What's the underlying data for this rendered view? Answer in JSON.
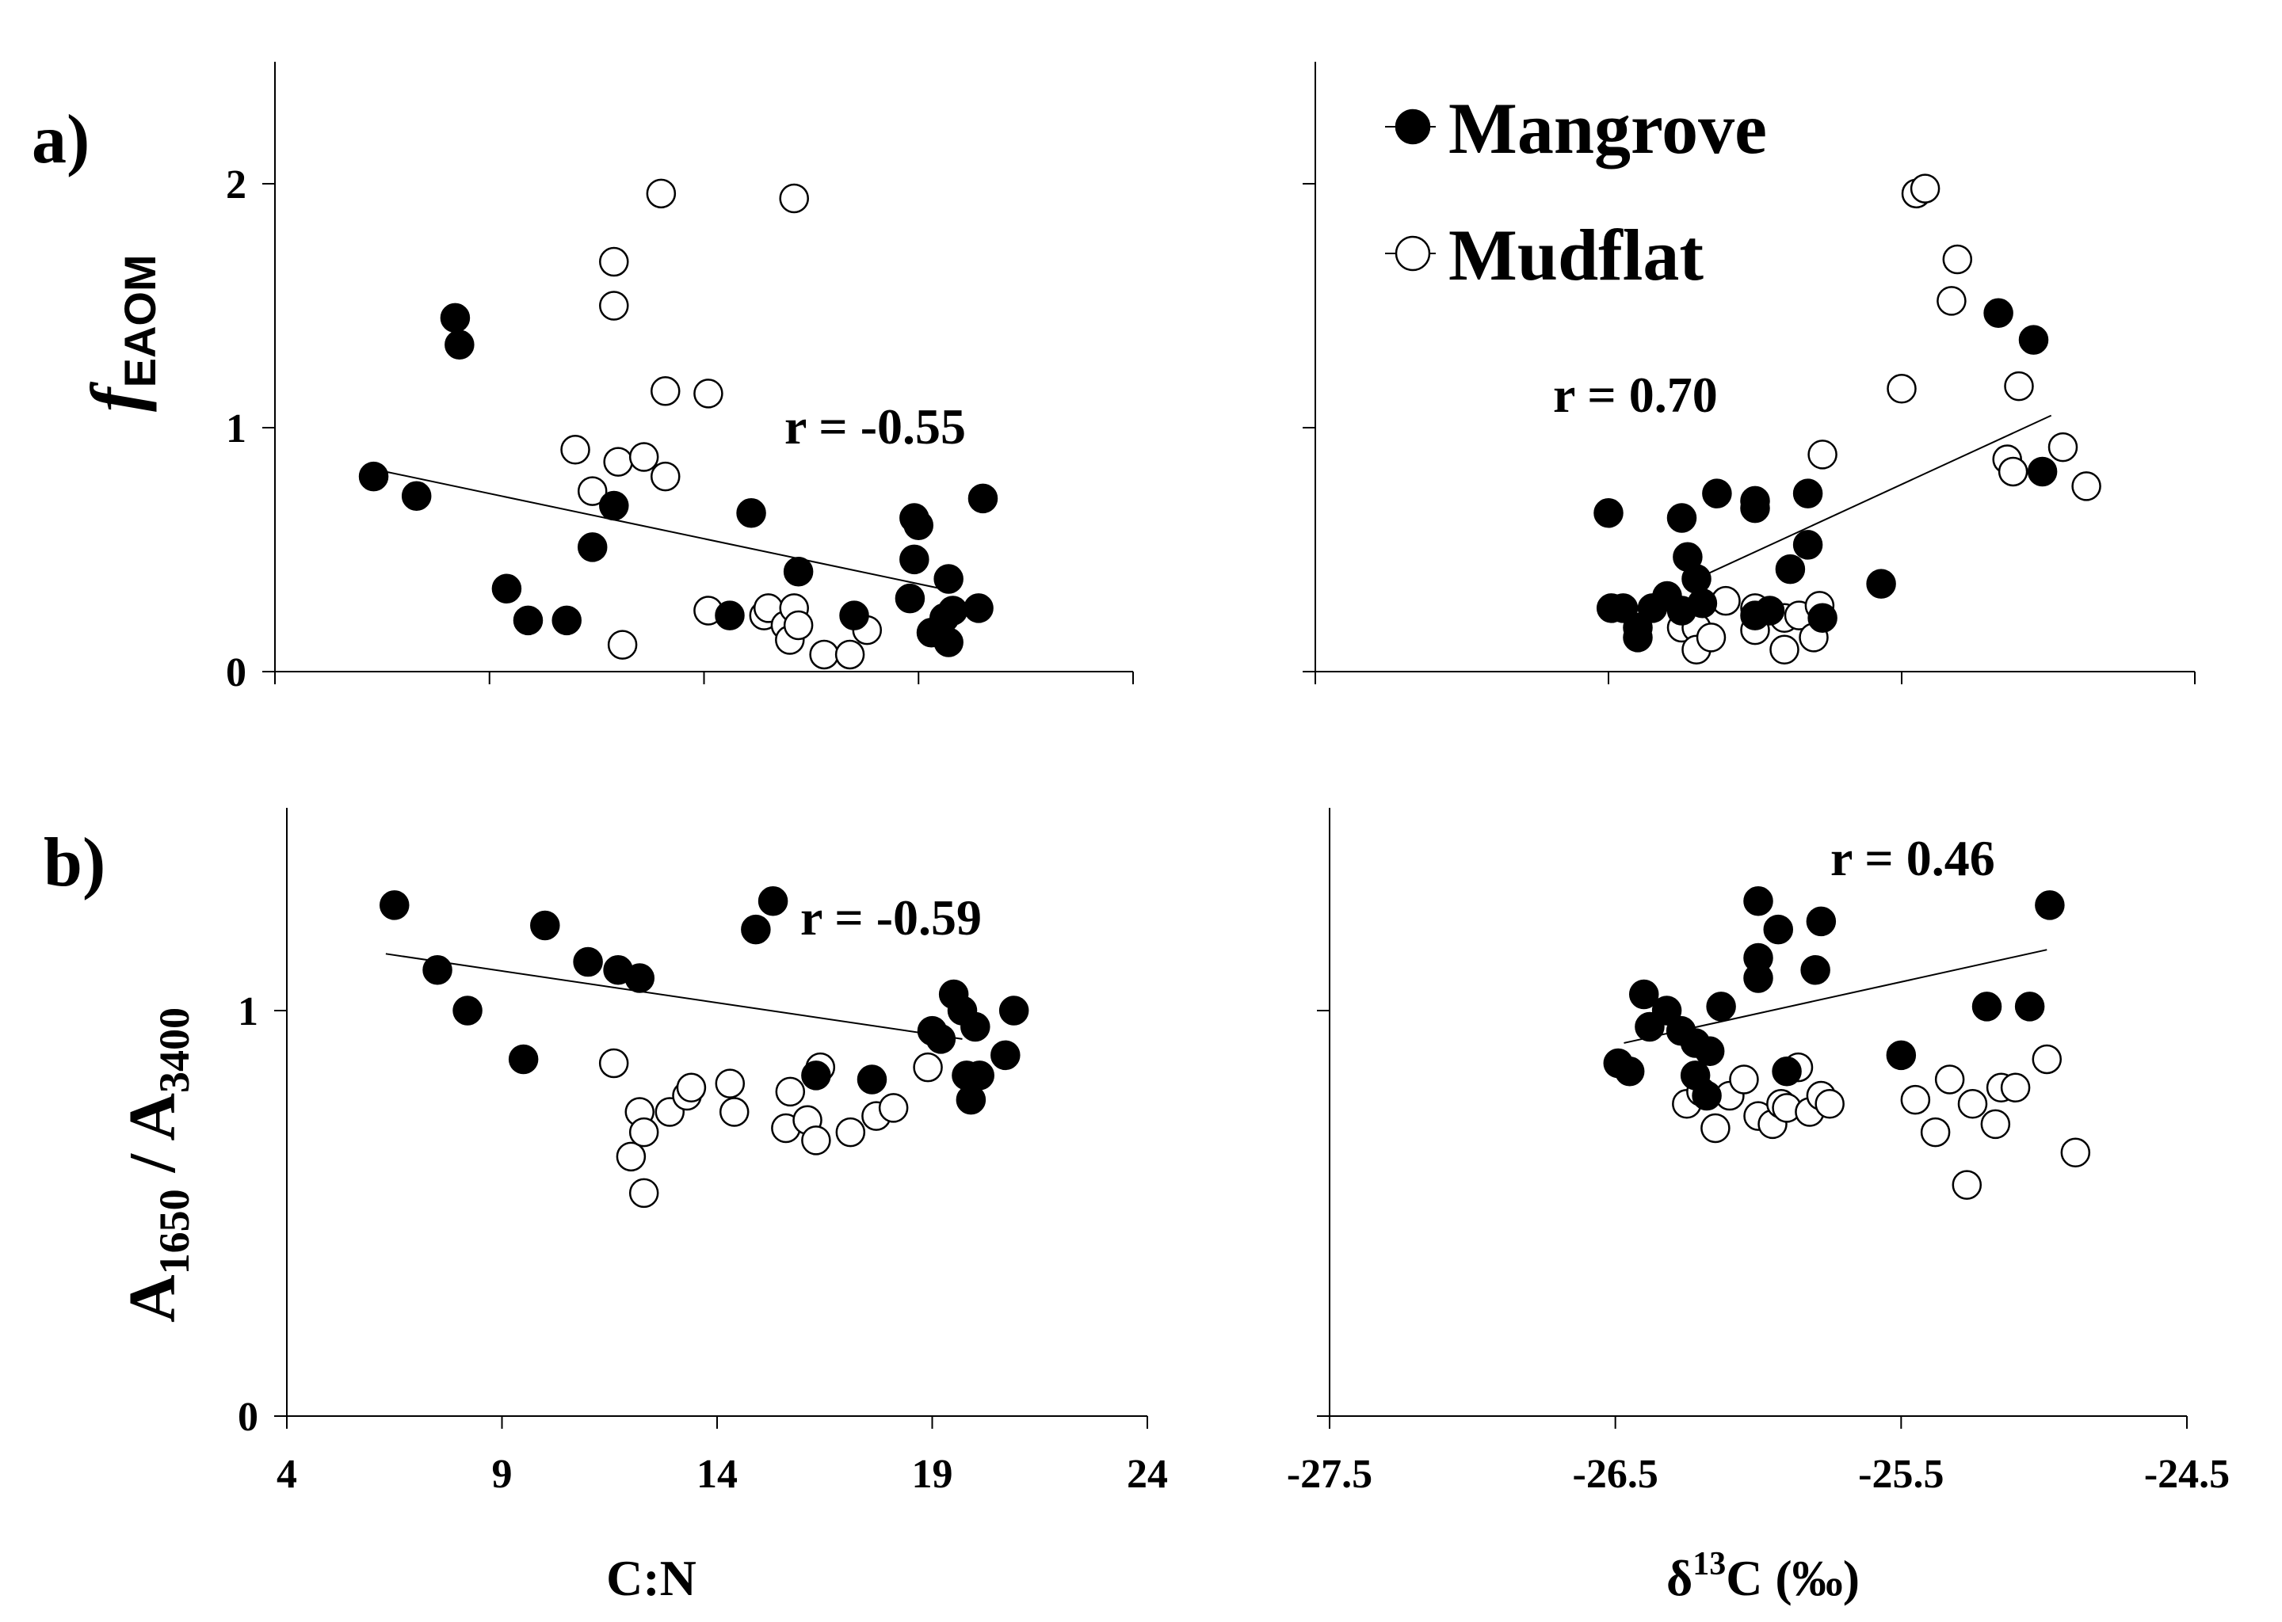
{
  "figure": {
    "panel_a_label": "a)",
    "panel_b_label": "b)",
    "ylabel_top": {
      "main": "f",
      "sub": "EAOM"
    },
    "ylabel_bottom": {
      "a1": "A",
      "s1": "1650",
      "mid": " / A",
      "s2": "3400"
    },
    "xlabel_left": "C:N",
    "xlabel_right": {
      "pre": "δ",
      "sup": "13",
      "post": "C (‰)"
    },
    "legend": {
      "mangrove": "Mangrove",
      "mudflat": "Mudflat"
    }
  },
  "chart_data": [
    {
      "id": "a_left",
      "type": "scatter",
      "xlim": [
        4,
        24
      ],
      "ylim": [
        0,
        2.5
      ],
      "yticks": [
        0,
        1,
        2
      ],
      "xticks": [
        4,
        9,
        14,
        19,
        24
      ],
      "show_xtick_labels": false,
      "show_ytick_labels": true,
      "r_label": "r = -0.55",
      "fit": [
        [
          6.3,
          0.83
        ],
        [
          19.8,
          0.33
        ]
      ],
      "series": [
        {
          "name": "Mangrove",
          "points": [
            [
              6.3,
              0.8
            ],
            [
              7.3,
              0.72
            ],
            [
              8.2,
              1.45
            ],
            [
              8.3,
              1.34
            ],
            [
              9.4,
              0.34
            ],
            [
              9.9,
              0.21
            ],
            [
              10.8,
              0.21
            ],
            [
              11.4,
              0.51
            ],
            [
              11.9,
              0.68
            ],
            [
              15.1,
              0.65
            ],
            [
              14.6,
              0.23
            ],
            [
              16.2,
              0.41
            ],
            [
              17.5,
              0.23
            ],
            [
              18.8,
              0.3
            ],
            [
              18.9,
              0.63
            ],
            [
              18.9,
              0.46
            ],
            [
              19.0,
              0.6
            ],
            [
              19.3,
              0.16
            ],
            [
              19.6,
              0.22
            ],
            [
              19.7,
              0.38
            ],
            [
              19.7,
              0.12
            ],
            [
              19.8,
              0.25
            ],
            [
              20.4,
              0.26
            ],
            [
              20.5,
              0.71
            ]
          ]
        },
        {
          "name": "Mudflat",
          "points": [
            [
              11.0,
              0.91
            ],
            [
              11.4,
              0.74
            ],
            [
              11.9,
              1.68
            ],
            [
              11.9,
              1.5
            ],
            [
              12.0,
              0.86
            ],
            [
              12.1,
              0.11
            ],
            [
              12.6,
              0.88
            ],
            [
              13.0,
              1.96
            ],
            [
              13.1,
              0.8
            ],
            [
              13.1,
              1.15
            ],
            [
              14.1,
              1.14
            ],
            [
              14.1,
              0.25
            ],
            [
              15.4,
              0.23
            ],
            [
              15.5,
              0.26
            ],
            [
              15.9,
              0.19
            ],
            [
              16.0,
              0.13
            ],
            [
              16.1,
              1.94
            ],
            [
              16.1,
              0.26
            ],
            [
              16.2,
              0.19
            ],
            [
              16.8,
              0.07
            ],
            [
              17.4,
              0.07
            ],
            [
              17.8,
              0.17
            ]
          ]
        }
      ]
    },
    {
      "id": "a_right",
      "type": "scatter",
      "xlim": [
        -27.5,
        -24.5
      ],
      "ylim": [
        0,
        2.5
      ],
      "yticks": [
        0,
        1,
        2
      ],
      "xticks": [
        -27.5,
        -26.5,
        -25.5,
        -24.5
      ],
      "show_xtick_labels": false,
      "show_ytick_labels": false,
      "r_label": "r = 0.70",
      "fit": [
        [
          -26.2,
          0.38
        ],
        [
          -24.99,
          1.05
        ]
      ],
      "series": [
        {
          "name": "Mangrove",
          "points": [
            [
              -26.5,
              0.65
            ],
            [
              -26.49,
              0.26
            ],
            [
              -26.45,
              0.26
            ],
            [
              -26.4,
              0.14
            ],
            [
              -26.4,
              0.18
            ],
            [
              -26.35,
              0.26
            ],
            [
              -26.3,
              0.31
            ],
            [
              -26.25,
              0.63
            ],
            [
              -26.25,
              0.25
            ],
            [
              -26.23,
              0.47
            ],
            [
              -26.2,
              0.38
            ],
            [
              -26.18,
              0.28
            ],
            [
              -26.13,
              0.73
            ],
            [
              -26.0,
              0.7
            ],
            [
              -26.0,
              0.67
            ],
            [
              -26.0,
              0.23
            ],
            [
              -25.95,
              0.25
            ],
            [
              -25.88,
              0.42
            ],
            [
              -25.82,
              0.73
            ],
            [
              -25.82,
              0.52
            ],
            [
              -25.77,
              0.22
            ],
            [
              -25.57,
              0.36
            ],
            [
              -25.17,
              1.47
            ],
            [
              -25.05,
              1.36
            ],
            [
              -25.02,
              0.82
            ]
          ]
        },
        {
          "name": "Mudflat",
          "points": [
            [
              -26.25,
              0.18
            ],
            [
              -26.2,
              0.18
            ],
            [
              -26.2,
              0.09
            ],
            [
              -26.15,
              0.14
            ],
            [
              -26.1,
              0.29
            ],
            [
              -26.0,
              0.26
            ],
            [
              -26.0,
              0.17
            ],
            [
              -25.9,
              0.22
            ],
            [
              -25.9,
              0.09
            ],
            [
              -25.85,
              0.23
            ],
            [
              -25.8,
              0.14
            ],
            [
              -25.78,
              0.27
            ],
            [
              -25.77,
              0.89
            ],
            [
              -25.5,
              1.16
            ],
            [
              -25.45,
              1.96
            ],
            [
              -25.42,
              1.98
            ],
            [
              -25.33,
              1.52
            ],
            [
              -25.31,
              1.69
            ],
            [
              -25.14,
              0.87
            ],
            [
              -25.12,
              0.82
            ],
            [
              -25.1,
              1.17
            ],
            [
              -24.95,
              0.92
            ],
            [
              -24.87,
              0.76
            ]
          ]
        }
      ]
    },
    {
      "id": "b_left",
      "type": "scatter",
      "xlim": [
        4,
        24
      ],
      "ylim": [
        0,
        1.5
      ],
      "yticks": [
        0,
        1
      ],
      "xticks": [
        4,
        9,
        14,
        19,
        24
      ],
      "show_xtick_labels": true,
      "show_ytick_labels": true,
      "r_label": "r = -0.59",
      "fit": [
        [
          6.3,
          1.14
        ],
        [
          19.7,
          0.93
        ]
      ],
      "series": [
        {
          "name": "Mangrove",
          "points": [
            [
              6.5,
              1.26
            ],
            [
              7.5,
              1.1
            ],
            [
              8.2,
              1.0
            ],
            [
              9.5,
              0.88
            ],
            [
              10.0,
              1.21
            ],
            [
              11.0,
              1.12
            ],
            [
              11.7,
              1.1
            ],
            [
              12.2,
              1.08
            ],
            [
              14.9,
              1.2
            ],
            [
              15.3,
              1.27
            ],
            [
              16.3,
              0.84
            ],
            [
              17.6,
              0.83
            ],
            [
              19.0,
              0.95
            ],
            [
              19.2,
              0.93
            ],
            [
              19.5,
              1.04
            ],
            [
              19.7,
              1.0
            ],
            [
              19.8,
              0.84
            ],
            [
              19.9,
              0.78
            ],
            [
              20.0,
              0.96
            ],
            [
              20.1,
              0.84
            ],
            [
              20.7,
              0.89
            ],
            [
              20.9,
              1.0
            ]
          ]
        },
        {
          "name": "Mudflat",
          "points": [
            [
              11.6,
              0.87
            ],
            [
              12.0,
              0.64
            ],
            [
              12.2,
              0.75
            ],
            [
              12.3,
              0.7
            ],
            [
              12.3,
              0.55
            ],
            [
              12.9,
              0.75
            ],
            [
              13.3,
              0.79
            ],
            [
              13.4,
              0.81
            ],
            [
              14.3,
              0.82
            ],
            [
              14.4,
              0.75
            ],
            [
              15.6,
              0.71
            ],
            [
              15.7,
              0.8
            ],
            [
              16.1,
              0.73
            ],
            [
              16.3,
              0.68
            ],
            [
              16.4,
              0.86
            ],
            [
              17.1,
              0.7
            ],
            [
              17.7,
              0.74
            ],
            [
              18.1,
              0.76
            ],
            [
              18.9,
              0.86
            ]
          ]
        }
      ]
    },
    {
      "id": "b_right",
      "type": "scatter",
      "xlim": [
        -27.5,
        -24.5
      ],
      "ylim": [
        0,
        1.5
      ],
      "yticks": [
        0,
        1
      ],
      "xticks": [
        -27.5,
        -26.5,
        -25.5,
        -24.5
      ],
      "show_xtick_labels": true,
      "show_ytick_labels": false,
      "r_label": "r = 0.46",
      "fit": [
        [
          -26.47,
          0.92
        ],
        [
          -24.99,
          1.15
        ]
      ],
      "series": [
        {
          "name": "Mangrove",
          "points": [
            [
              -26.49,
              0.87
            ],
            [
              -26.45,
              0.85
            ],
            [
              -26.4,
              1.04
            ],
            [
              -26.38,
              0.96
            ],
            [
              -26.32,
              1.0
            ],
            [
              -26.27,
              0.95
            ],
            [
              -26.22,
              0.92
            ],
            [
              -26.22,
              0.84
            ],
            [
              -26.18,
              0.79
            ],
            [
              -26.17,
              0.9
            ],
            [
              -26.13,
              1.01
            ],
            [
              -26.0,
              1.27
            ],
            [
              -26.0,
              1.13
            ],
            [
              -26.0,
              1.08
            ],
            [
              -25.93,
              1.2
            ],
            [
              -25.9,
              0.85
            ],
            [
              -25.8,
              1.1
            ],
            [
              -25.78,
              1.22
            ],
            [
              -25.5,
              0.89
            ],
            [
              -25.2,
              1.01
            ],
            [
              -25.05,
              1.01
            ],
            [
              -24.98,
              1.26
            ]
          ]
        },
        {
          "name": "Mudflat",
          "points": [
            [
              -26.25,
              0.77
            ],
            [
              -26.2,
              0.8
            ],
            [
              -26.15,
              0.71
            ],
            [
              -26.1,
              0.79
            ],
            [
              -26.05,
              0.83
            ],
            [
              -26.0,
              0.74
            ],
            [
              -25.95,
              0.72
            ],
            [
              -25.92,
              0.77
            ],
            [
              -25.9,
              0.76
            ],
            [
              -25.86,
              0.86
            ],
            [
              -25.82,
              0.75
            ],
            [
              -25.78,
              0.79
            ],
            [
              -25.75,
              0.77
            ],
            [
              -25.45,
              0.78
            ],
            [
              -25.38,
              0.7
            ],
            [
              -25.33,
              0.83
            ],
            [
              -25.27,
              0.57
            ],
            [
              -25.25,
              0.77
            ],
            [
              -25.17,
              0.72
            ],
            [
              -25.15,
              0.81
            ],
            [
              -25.1,
              0.81
            ],
            [
              -24.99,
              0.88
            ],
            [
              -24.89,
              0.65
            ]
          ]
        }
      ]
    }
  ]
}
